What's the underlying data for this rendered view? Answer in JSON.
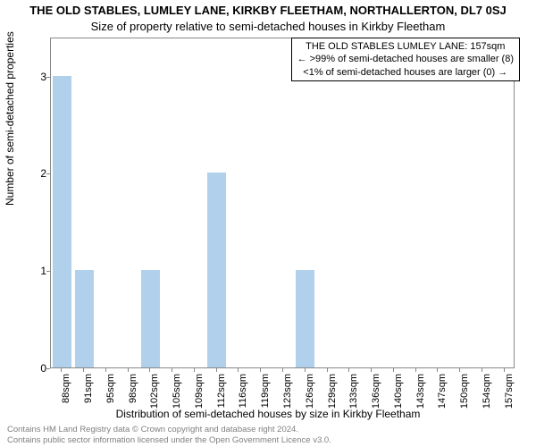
{
  "title_main": "THE OLD STABLES, LUMLEY LANE, KIRKBY FLEETHAM, NORTHALLERTON, DL7 0SJ",
  "title_sub": "Size of property relative to semi-detached houses in Kirkby Fleetham",
  "legend": {
    "line1": "THE OLD STABLES LUMLEY LANE: 157sqm",
    "line2": "← >99% of semi-detached houses are smaller (8)",
    "line3": "<1% of semi-detached houses are larger (0) →"
  },
  "ylabel": "Number of semi-detached properties",
  "xlabel": "Distribution of semi-detached houses by size in Kirkby Fleetham",
  "footer_line1": "Contains HM Land Registry data © Crown copyright and database right 2024.",
  "footer_line2": "Contains public sector information licensed under the Open Government Licence v3.0.",
  "chart": {
    "type": "bar",
    "bar_color": "#b1d0ec",
    "background_color": "#ffffff",
    "border_color": "#888888",
    "ylim": [
      0,
      3.4
    ],
    "yticks": [
      0,
      1,
      2,
      3
    ],
    "categories": [
      "88sqm",
      "91sqm",
      "95sqm",
      "98sqm",
      "102sqm",
      "105sqm",
      "109sqm",
      "112sqm",
      "116sqm",
      "119sqm",
      "123sqm",
      "126sqm",
      "129sqm",
      "133sqm",
      "136sqm",
      "140sqm",
      "143sqm",
      "147sqm",
      "150sqm",
      "154sqm",
      "157sqm"
    ],
    "values": [
      3,
      1,
      0,
      0,
      1,
      0,
      0,
      2,
      0,
      0,
      0,
      1,
      0,
      0,
      0,
      0,
      0,
      0,
      0,
      0,
      0
    ],
    "bar_width_ratio": 0.85
  }
}
